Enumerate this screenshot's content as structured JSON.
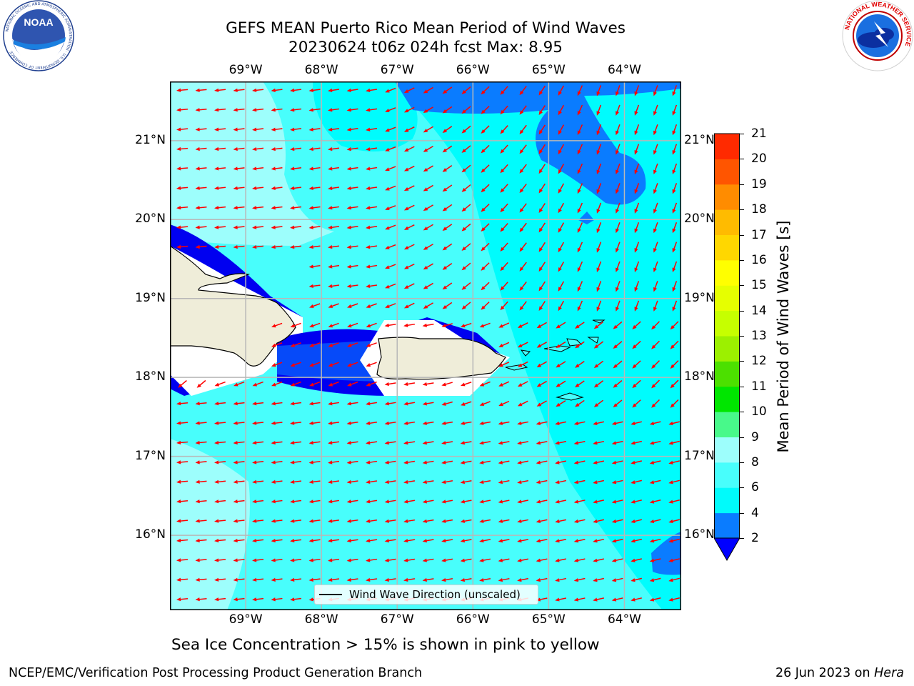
{
  "header": {
    "title_line1": "GEFS MEAN Puerto Rico Mean Period of Wind Waves",
    "title_line2": "20230624 t06z 024h fcst   Max: 8.95"
  },
  "logos": {
    "noaa": "NOAA",
    "noaa_ring_text": "NATIONAL OCEANIC AND ATMOSPHERIC ADMINISTRATION · U.S. DEPARTMENT OF COMMERCE",
    "nws_ring_text": "NATIONAL WEATHER SERVICE"
  },
  "map": {
    "lon_labels": [
      "69°W",
      "68°W",
      "67°W",
      "66°W",
      "65°W",
      "64°W"
    ],
    "lat_labels": [
      "21°N",
      "20°N",
      "19°N",
      "18°N",
      "17°N",
      "16°N"
    ],
    "lon_range": [
      -70,
      -63.25
    ],
    "lat_range": [
      15.05,
      21.75
    ],
    "wave_direction": "westward (toward W to WSW)",
    "colors": {
      "land": "#efedd9",
      "grid": "#b8b8b8",
      "arrow": "#ff0000",
      "c2_4": "#0a7cff",
      "c4_6": "#00fcfd",
      "c6_8": "#48fefc",
      "c8_9": "#9dfefc",
      "deep_blue": "#0000f0"
    }
  },
  "legend": {
    "label": "Wind Wave Direction (unscaled)"
  },
  "colorbar": {
    "title": "Mean Period of Wind Waves [s]",
    "ticks": [
      "2",
      "4",
      "6",
      "8",
      "9",
      "10",
      "11",
      "12",
      "13",
      "14",
      "15",
      "16",
      "17",
      "18",
      "19",
      "20",
      "21"
    ],
    "colors": [
      "#0a7cff",
      "#00fbfb",
      "#48fefc",
      "#9dfefc",
      "#48f98a",
      "#00e600",
      "#4ce000",
      "#9cf000",
      "#c6ff00",
      "#e6ff00",
      "#ffff00",
      "#ffd700",
      "#ffbb00",
      "#ff8c00",
      "#ff5500",
      "#ff2a00",
      "#ff0000"
    ],
    "under_color": "#0000ff"
  },
  "notes": {
    "sea_ice": "Sea Ice Concentration > 15% is shown in pink to yellow"
  },
  "footer": {
    "left": "NCEP/EMC/Verification Post Processing Product Generation Branch",
    "right_date": "26 Jun 2023 on ",
    "right_host": "Hera"
  }
}
